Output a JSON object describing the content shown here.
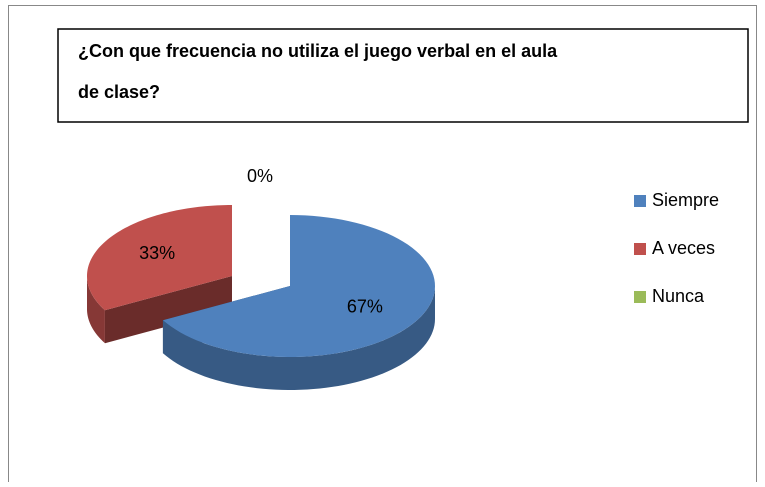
{
  "chart_data": {
    "type": "pie3d",
    "title": "¿Con que frecuencia no utiliza el juego verbal en el aula de clase?",
    "categories": [
      "Siempre",
      "A veces",
      "Nunca"
    ],
    "values": [
      67,
      33,
      0
    ],
    "value_labels": [
      "67%",
      "33%",
      "0%"
    ],
    "colors": [
      "#4f81bd",
      "#c0504d",
      "#9bbb59"
    ],
    "legend": "right"
  }
}
